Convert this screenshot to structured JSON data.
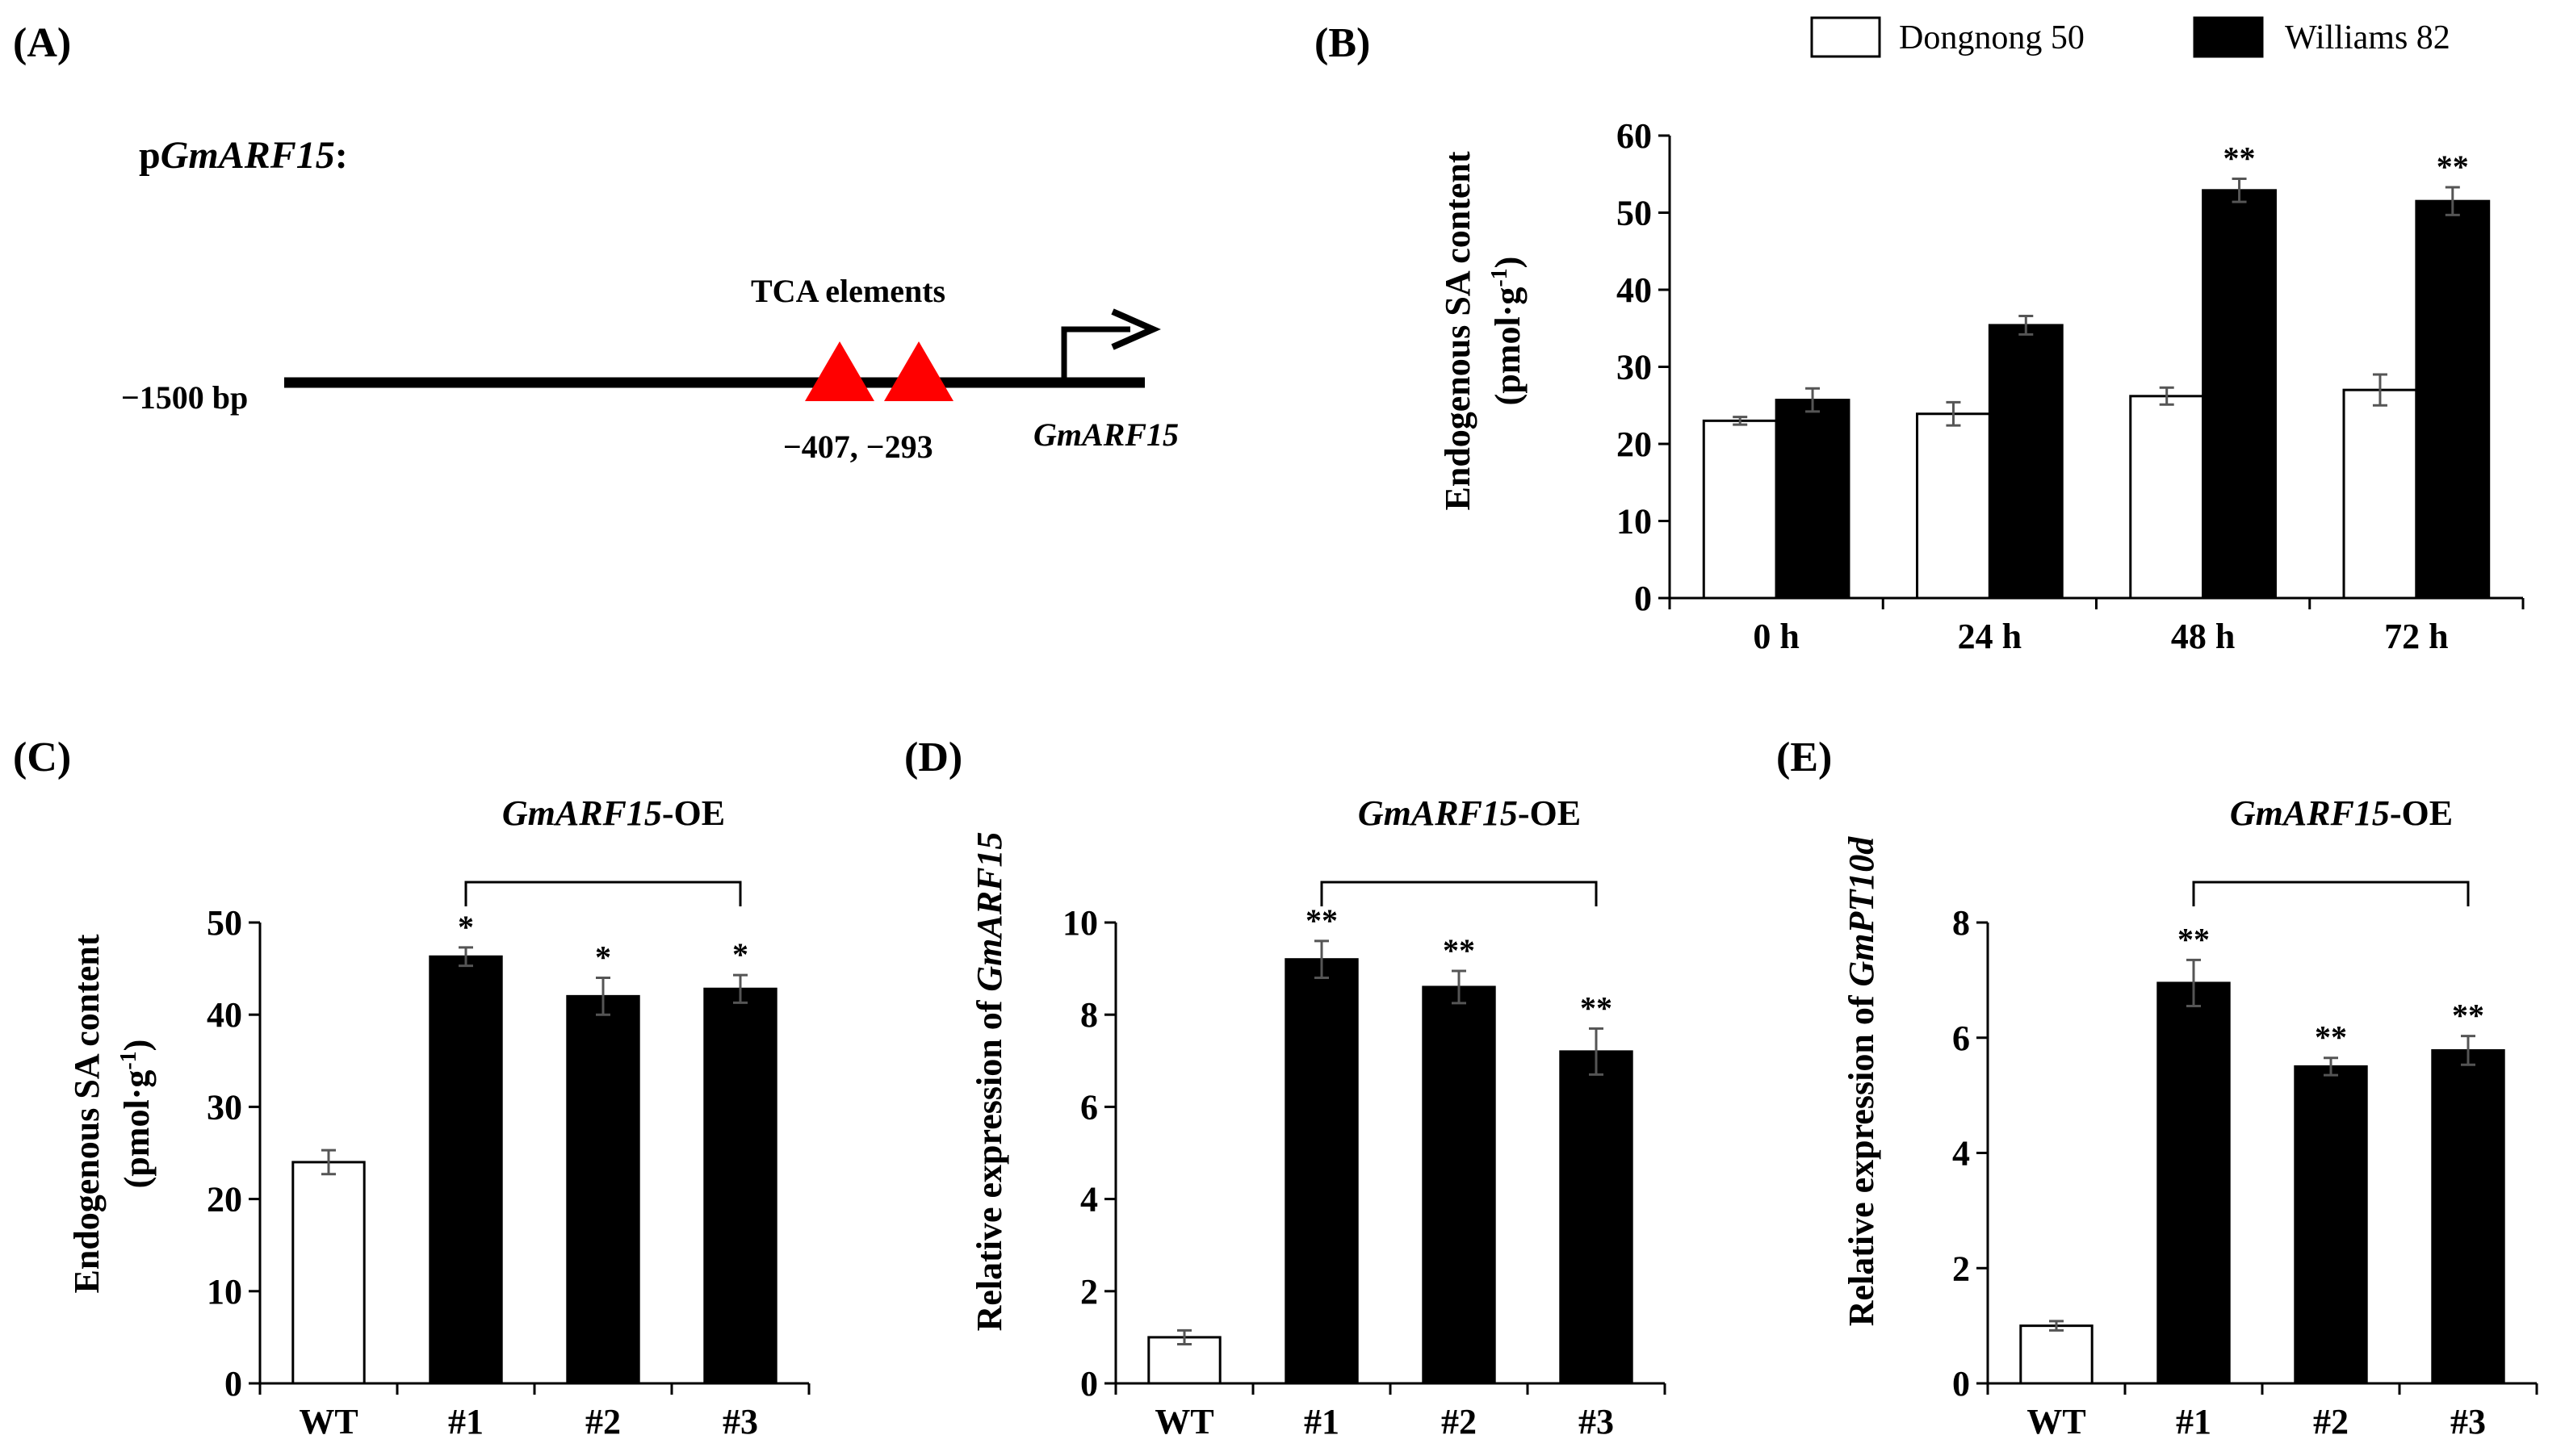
{
  "colors": {
    "black": "#000000",
    "white": "#ffffff",
    "red": "#ff0000",
    "errorbar": "#555555"
  },
  "panel_labels": [
    "(A)",
    "(B)",
    "(C)",
    "(D)",
    "(E)"
  ],
  "promoter": {
    "title_prefix": "p",
    "title_gene": "GmARF15",
    "title_suffix": ":",
    "start_label": "−1500 bp",
    "element_label": "TCA elements",
    "positions_label": "−407, −293",
    "gene_label": "GmARF15"
  },
  "legend": [
    "Dongnong 50",
    "Williams 82"
  ],
  "chart_data": [
    {
      "panel": "(B)",
      "type": "bar",
      "categories": [
        "0 h",
        "24 h",
        "48 h",
        "72 h"
      ],
      "series": [
        {
          "name": "Dongnong 50",
          "values": [
            23,
            23.9,
            26.2,
            27
          ],
          "errors": [
            0.5,
            1.5,
            1.1,
            2.0
          ],
          "color": "#ffffff"
        },
        {
          "name": "Williams 82",
          "values": [
            25.7,
            35.4,
            52.9,
            51.5
          ],
          "errors": [
            1.5,
            1.2,
            1.5,
            1.8
          ],
          "color": "#000000",
          "significance": [
            "",
            "",
            "**",
            "**"
          ]
        }
      ],
      "ylabel_line1": "Endogenous SA content",
      "ylabel_line2_prefix": "(pmol·g",
      "ylabel_line2_sup": "-1",
      "ylabel_line2_suffix": ")",
      "ylim": [
        0,
        60
      ],
      "yticks": [
        0,
        10,
        20,
        30,
        40,
        50,
        60
      ],
      "legend_position": "top"
    },
    {
      "panel": "(C)",
      "type": "bar",
      "categories": [
        "WT",
        "#1",
        "#2",
        "#3"
      ],
      "values": [
        24,
        46.3,
        42,
        42.8
      ],
      "errors": [
        1.3,
        1.0,
        2.0,
        1.5
      ],
      "bar_colors": [
        "#ffffff",
        "#000000",
        "#000000",
        "#000000"
      ],
      "significance": [
        "",
        "*",
        "*",
        "*"
      ],
      "group_label_gene": "GmARF15",
      "group_label_suffix": "-OE",
      "ylabel_line1": "Endogenous SA content",
      "ylabel_line2_prefix": "(pmol·g",
      "ylabel_line2_sup": "-1",
      "ylabel_line2_suffix": ")",
      "ylim": [
        0,
        50
      ],
      "yticks": [
        0,
        10,
        20,
        30,
        40,
        50
      ]
    },
    {
      "panel": "(D)",
      "type": "bar",
      "categories": [
        "WT",
        "#1",
        "#2",
        "#3"
      ],
      "values": [
        1,
        9.2,
        8.6,
        7.2
      ],
      "errors": [
        0.15,
        0.4,
        0.35,
        0.5
      ],
      "bar_colors": [
        "#ffffff",
        "#000000",
        "#000000",
        "#000000"
      ],
      "significance": [
        "",
        "**",
        "**",
        "**"
      ],
      "group_label_gene": "GmARF15",
      "group_label_suffix": "-OE",
      "ylabel_prefix": "Relative expression of ",
      "ylabel_gene": "GmARF15",
      "ylim": [
        0,
        10
      ],
      "yticks": [
        0,
        2,
        4,
        6,
        8,
        10
      ]
    },
    {
      "panel": "(E)",
      "type": "bar",
      "categories": [
        "WT",
        "#1",
        "#2",
        "#3"
      ],
      "values": [
        1,
        6.95,
        5.5,
        5.78
      ],
      "errors": [
        0.08,
        0.4,
        0.15,
        0.25
      ],
      "bar_colors": [
        "#ffffff",
        "#000000",
        "#000000",
        "#000000"
      ],
      "significance": [
        "",
        "**",
        "**",
        "**"
      ],
      "group_label_gene": "GmARF15",
      "group_label_suffix": "-OE",
      "ylabel_prefix": "Relative expression of ",
      "ylabel_gene": "GmPT10d",
      "ylim": [
        0,
        8
      ],
      "yticks": [
        0,
        2,
        4,
        6,
        8
      ]
    }
  ]
}
